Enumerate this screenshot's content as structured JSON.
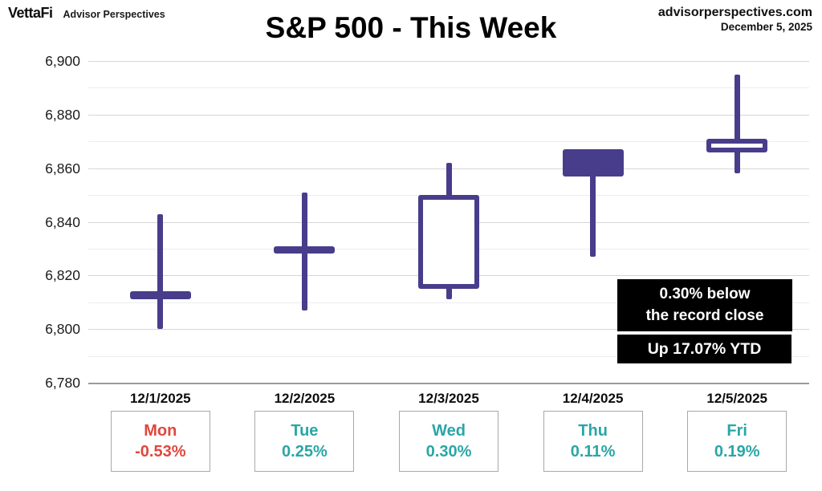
{
  "header": {
    "logo_primary": "VettaFi",
    "logo_secondary": "Advisor Perspectives",
    "title": "S&P 500 - This Week",
    "site": "advisorperspectives.com",
    "date": "December 5, 2025"
  },
  "annotations": {
    "record_line1": "0.30% below",
    "record_line2": "the record close",
    "ytd": "Up 17.07% YTD"
  },
  "colors": {
    "candle": "#483D8B",
    "up_text": "#2AA6A6",
    "down_text": "#E0473D"
  },
  "chart_data": {
    "type": "candlestick",
    "title": "S&P 500 - This Week",
    "ylim": [
      6780,
      6900
    ],
    "y_ticks": [
      6900,
      6880,
      6860,
      6840,
      6820,
      6800,
      6780
    ],
    "grid": "horizontal major every 20, minor every 10",
    "legend": "none",
    "days": [
      {
        "date": "12/1/2025",
        "day": "Mon",
        "change": "-0.53%",
        "open": 6814,
        "high": 6843,
        "low": 6800,
        "close": 6811,
        "direction": "down"
      },
      {
        "date": "12/2/2025",
        "day": "Tue",
        "change": "0.25%",
        "open": 6831,
        "high": 6851,
        "low": 6807,
        "close": 6829,
        "direction": "up"
      },
      {
        "date": "12/3/2025",
        "day": "Wed",
        "change": "0.30%",
        "open": 6815,
        "high": 6862,
        "low": 6811,
        "close": 6850,
        "direction": "up"
      },
      {
        "date": "12/4/2025",
        "day": "Thu",
        "change": "0.11%",
        "open": 6867,
        "high": 6867,
        "low": 6827,
        "close": 6857,
        "direction": "up"
      },
      {
        "date": "12/5/2025",
        "day": "Fri",
        "change": "0.19%",
        "open": 6866,
        "high": 6895,
        "low": 6858,
        "close": 6871,
        "direction": "up"
      }
    ]
  }
}
